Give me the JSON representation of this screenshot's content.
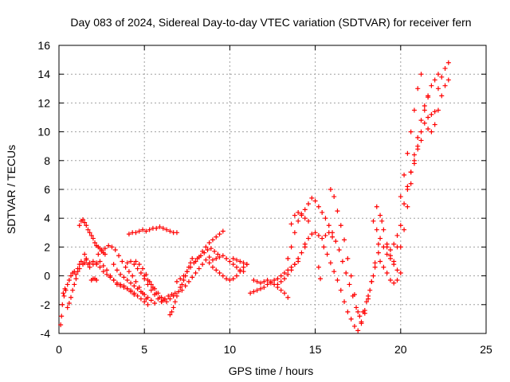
{
  "chart_data": {
    "type": "scatter",
    "title": "Day 083 of 2024, Sidereal Day-to-day VTEC variation (SDTVAR) for receiver fern",
    "xlabel": "GPS time / hours",
    "ylabel": "SDTVAR / TECUs",
    "xlim": [
      0,
      25
    ],
    "ylim": [
      -4,
      16
    ],
    "xticks": [
      0,
      5,
      10,
      15,
      20,
      25
    ],
    "yticks": [
      -4,
      -2,
      0,
      2,
      4,
      6,
      8,
      10,
      12,
      14,
      16
    ],
    "grid": true,
    "marker": "+",
    "color": "#ff0000",
    "series": [
      {
        "x": [
          0.1,
          0.15,
          0.2,
          0.25,
          0.3,
          0.35,
          0.4,
          0.5,
          0.6,
          0.7,
          0.8,
          0.9,
          1.0,
          1.1,
          1.2,
          1.3,
          1.4,
          1.5,
          1.6,
          1.7,
          1.8
        ],
        "y": [
          -3.4,
          -2.8,
          -2.0,
          -1.2,
          -1.4,
          -0.9,
          -1.0,
          -0.6,
          -0.3,
          0.0,
          0.2,
          0.3,
          0.1,
          0.5,
          0.8,
          1.0,
          0.8,
          0.9,
          1.1,
          0.8,
          0.6
        ]
      },
      {
        "x": [
          0.5,
          0.6,
          0.7,
          0.8,
          0.9,
          1.0,
          1.1,
          1.2
        ],
        "y": [
          -2.2,
          -1.9,
          -1.5,
          -1.0,
          -0.6,
          -0.2,
          0.3,
          0.5
        ]
      },
      {
        "x": [
          1.2,
          1.3,
          1.4,
          1.5,
          1.6,
          1.7,
          1.8,
          1.9,
          2.0,
          2.1,
          2.2,
          2.3,
          2.4,
          2.5,
          2.6,
          2.7
        ],
        "y": [
          3.5,
          3.8,
          3.9,
          3.7,
          3.5,
          3.2,
          3.0,
          2.8,
          2.6,
          2.3,
          2.1,
          2.0,
          1.9,
          1.8,
          1.6,
          1.5
        ]
      },
      {
        "x": [
          1.5,
          1.6,
          1.8,
          2.0,
          2.2,
          2.4,
          2.6,
          2.8,
          3.0,
          3.2,
          3.4,
          3.6,
          3.8,
          4.0,
          4.2,
          4.4,
          4.6,
          4.8,
          5.0,
          5.2
        ],
        "y": [
          1.5,
          1.2,
          0.9,
          0.8,
          0.9,
          1.0,
          0.7,
          0.4,
          0.0,
          -0.3,
          -0.6,
          -0.7,
          -0.8,
          -0.9,
          -1.0,
          -1.2,
          -1.4,
          -1.6,
          -1.8,
          -2.0
        ]
      },
      {
        "x": [
          2.0,
          2.2,
          2.4,
          2.6,
          2.8,
          3.0,
          3.2,
          3.4,
          3.6,
          3.8,
          4.0,
          4.2,
          4.4
        ],
        "y": [
          1.0,
          0.8,
          0.6,
          0.3,
          0.1,
          -0.1,
          -0.3,
          -0.5,
          -0.6,
          -0.7,
          -0.9,
          -1.1,
          -1.3
        ]
      },
      {
        "x": [
          1.9,
          2.0,
          2.1,
          2.2
        ],
        "y": [
          -0.3,
          -0.2,
          -0.2,
          -0.3
        ]
      },
      {
        "x": [
          2.3,
          2.5,
          2.7,
          2.9,
          3.1,
          3.3,
          3.5,
          3.7,
          3.9,
          4.1,
          4.3,
          4.5,
          4.7,
          4.9,
          5.1
        ],
        "y": [
          1.5,
          1.7,
          1.9,
          2.1,
          2.0,
          1.8,
          1.4,
          1.0,
          0.6,
          0.3,
          0.0,
          -0.4,
          -0.8,
          -1.2,
          -1.6
        ]
      },
      {
        "x": [
          3.2,
          3.4,
          3.6,
          3.8,
          4.0,
          4.2,
          4.4,
          4.6,
          4.8,
          5.0,
          5.2,
          5.4,
          5.6
        ],
        "y": [
          0.8,
          0.4,
          0.1,
          -0.1,
          -0.3,
          -0.5,
          -0.7,
          -0.9,
          -1.1,
          -1.3,
          -1.5,
          -1.7,
          -1.9
        ]
      },
      {
        "x": [
          4.0,
          4.2,
          4.4,
          4.6,
          4.8,
          5.0,
          5.2,
          5.4,
          5.6,
          5.8,
          6.0
        ],
        "y": [
          0.9,
          1.0,
          0.8,
          0.5,
          0.2,
          -0.2,
          -0.6,
          -1.0,
          -1.3,
          -1.6,
          -1.8
        ]
      },
      {
        "x": [
          4.5,
          4.7,
          4.9,
          5.1,
          5.3,
          5.5,
          5.7,
          5.9,
          6.1,
          6.3,
          6.5,
          6.7
        ],
        "y": [
          1.0,
          0.8,
          0.5,
          0.1,
          -0.4,
          -0.8,
          -1.2,
          -1.5,
          -1.7,
          -1.8,
          -1.6,
          -1.4
        ]
      },
      {
        "x": [
          5.0,
          5.2,
          5.4,
          5.6,
          5.8,
          6.0,
          6.2
        ],
        "y": [
          0.0,
          -0.3,
          -0.6,
          -0.9,
          -1.2,
          -1.5,
          -1.6
        ]
      },
      {
        "x": [
          6.0,
          6.2,
          6.4,
          6.6,
          6.8
        ],
        "y": [
          -1.8,
          -1.6,
          -1.4,
          -1.3,
          -1.2
        ]
      },
      {
        "x": [
          4.1,
          4.3,
          4.5,
          4.7,
          4.9,
          5.1,
          5.3,
          5.5,
          5.7,
          5.9,
          6.1,
          6.3,
          6.5,
          6.7,
          6.9
        ],
        "y": [
          2.9,
          3.0,
          3.0,
          3.1,
          3.2,
          3.1,
          3.2,
          3.3,
          3.3,
          3.4,
          3.3,
          3.2,
          3.1,
          3.0,
          3.0
        ]
      },
      {
        "x": [
          6.5,
          6.6,
          6.7,
          6.8,
          6.9,
          7.0,
          7.1,
          7.2,
          7.3,
          7.4,
          7.5,
          7.6,
          7.7,
          7.8
        ],
        "y": [
          -2.7,
          -2.5,
          -2.2,
          -1.8,
          -1.4,
          -1.1,
          -0.8,
          -0.6,
          -0.3,
          0.0,
          0.3,
          0.6,
          0.9,
          1.2
        ]
      },
      {
        "x": [
          6.9,
          7.1,
          7.3,
          7.5,
          7.7,
          7.9,
          8.1,
          8.3,
          8.5,
          8.7,
          8.9,
          9.1,
          9.3
        ],
        "y": [
          -0.4,
          -0.2,
          0.0,
          0.3,
          0.6,
          0.9,
          1.2,
          1.4,
          1.6,
          1.8,
          1.9,
          1.7,
          1.5
        ]
      },
      {
        "x": [
          7.2,
          7.4,
          7.6,
          7.8,
          8.0,
          8.2,
          8.4,
          8.6,
          8.8
        ],
        "y": [
          -1.0,
          -0.7,
          -0.4,
          -0.1,
          0.2,
          0.5,
          0.8,
          1.1,
          1.3
        ]
      },
      {
        "x": [
          8.0,
          8.2,
          8.4,
          8.6,
          8.8,
          9.0,
          9.2,
          9.4,
          9.6
        ],
        "y": [
          1.0,
          1.3,
          1.7,
          2.0,
          2.3,
          2.5,
          2.7,
          2.9,
          3.1
        ]
      },
      {
        "x": [
          8.8,
          9.0,
          9.2,
          9.4,
          9.6,
          9.8,
          10.0,
          10.2,
          10.4,
          10.6,
          10.8
        ],
        "y": [
          0.9,
          1.1,
          1.2,
          1.3,
          1.4,
          1.2,
          1.0,
          0.8,
          0.6,
          0.4,
          0.3
        ]
      },
      {
        "x": [
          9.0,
          9.2,
          9.4,
          9.6,
          9.8,
          10.0,
          10.2,
          10.4,
          10.6,
          10.8,
          11.0
        ],
        "y": [
          0.6,
          0.4,
          0.2,
          0.0,
          -0.2,
          -0.3,
          -0.2,
          0.0,
          0.3,
          0.6,
          0.8
        ]
      },
      {
        "x": [
          10.2,
          10.4,
          10.6,
          10.8,
          11.0
        ],
        "y": [
          1.2,
          1.1,
          1.0,
          0.9,
          0.8
        ]
      },
      {
        "x": [
          11.2,
          11.4,
          11.6,
          11.8,
          12.0,
          12.2,
          12.4,
          12.6,
          12.8,
          13.0,
          13.2,
          13.4,
          13.6,
          13.8,
          14.0
        ],
        "y": [
          -1.2,
          -1.1,
          -1.0,
          -0.9,
          -0.8,
          -0.6,
          -0.5,
          -0.3,
          -0.2,
          0.0,
          0.2,
          0.4,
          0.6,
          0.8,
          1.0
        ]
      },
      {
        "x": [
          11.4,
          11.6,
          11.8,
          12.0,
          12.2,
          12.4,
          12.6,
          12.8,
          13.0,
          13.2,
          13.4
        ],
        "y": [
          -0.3,
          -0.4,
          -0.5,
          -0.4,
          -0.3,
          -0.4,
          -0.6,
          -0.8,
          -1.0,
          -1.2,
          -1.5
        ]
      },
      {
        "x": [
          12.8,
          13.0,
          13.2,
          13.4,
          13.6,
          13.8,
          14.0,
          14.2,
          14.4
        ],
        "y": [
          -0.6,
          -0.4,
          -0.2,
          0.1,
          0.4,
          0.8,
          1.2,
          1.6,
          2.0
        ]
      },
      {
        "x": [
          13.4,
          13.6,
          13.8,
          14.0,
          14.2,
          14.4,
          14.6,
          14.8,
          15.0,
          15.2,
          15.4,
          15.6,
          15.8,
          16.0
        ],
        "y": [
          1.2,
          2.0,
          3.0,
          3.8,
          4.2,
          4.6,
          5.0,
          5.4,
          5.2,
          4.8,
          4.4,
          4.0,
          3.5,
          3.0
        ]
      },
      {
        "x": [
          13.6,
          13.8,
          14.0,
          14.2,
          14.4,
          14.6
        ],
        "y": [
          3.6,
          4.2,
          4.4,
          4.3,
          4.0,
          3.8
        ]
      },
      {
        "x": [
          14.4,
          14.6,
          14.8,
          15.0,
          15.2,
          15.4,
          15.6,
          15.8,
          16.0,
          16.2
        ],
        "y": [
          2.2,
          2.6,
          2.9,
          3.0,
          2.8,
          2.6,
          2.8,
          3.0,
          2.7,
          2.4
        ]
      },
      {
        "x": [
          15.2,
          15.3
        ],
        "y": [
          0.6,
          -0.2
        ]
      },
      {
        "x": [
          15.5,
          15.7,
          15.9,
          16.1,
          16.3,
          16.5,
          16.7,
          16.9,
          17.1,
          17.3,
          17.5,
          17.7,
          17.9,
          18.1,
          18.3,
          18.5,
          18.7
        ],
        "y": [
          2.0,
          1.5,
          0.9,
          0.3,
          -0.3,
          -1.0,
          -1.8,
          -2.5,
          -3.0,
          -3.5,
          -3.8,
          -3.2,
          -2.4,
          -1.4,
          -0.4,
          0.6,
          1.6
        ]
      },
      {
        "x": [
          15.9,
          16.1,
          16.3,
          16.5,
          16.7,
          16.9,
          17.1,
          17.3,
          17.5,
          17.7,
          17.9,
          18.1,
          18.3,
          18.5,
          18.7,
          18.9
        ],
        "y": [
          6.0,
          5.5,
          4.5,
          3.5,
          2.5,
          1.2,
          0.0,
          -1.3,
          -2.5,
          -3.3,
          -2.6,
          -1.6,
          -0.4,
          0.9,
          2.2,
          3.8
        ]
      },
      {
        "x": [
          16.4,
          16.6,
          16.8,
          17.0,
          17.2,
          17.4,
          17.6,
          17.8,
          18.0,
          18.2,
          18.4
        ],
        "y": [
          1.8,
          1.0,
          0.2,
          -0.6,
          -1.4,
          -2.2,
          -2.8,
          -2.5,
          -1.8,
          -1.0,
          0.0
        ]
      },
      {
        "x": [
          18.4,
          18.6,
          18.8,
          19.0,
          19.2,
          19.4
        ],
        "y": [
          3.8,
          3.2,
          2.6,
          2.0,
          1.5,
          1.2
        ]
      },
      {
        "x": [
          18.6,
          18.8,
          19.0,
          19.2,
          19.4,
          19.6,
          19.8
        ],
        "y": [
          4.8,
          4.2,
          3.2,
          2.2,
          1.4,
          0.8,
          0.4
        ]
      },
      {
        "x": [
          18.8,
          19.0,
          19.2,
          19.4,
          19.6,
          19.8,
          20.0
        ],
        "y": [
          1.0,
          0.6,
          0.2,
          -0.3,
          -0.5,
          -0.3,
          0.2
        ]
      },
      {
        "x": [
          19.2,
          19.4,
          19.6,
          19.8
        ],
        "y": [
          2.0,
          1.8,
          2.2,
          2.8
        ]
      },
      {
        "x": [
          19.6,
          19.8,
          20.0,
          20.2,
          20.4,
          20.6,
          20.8,
          21.0,
          21.2
        ],
        "y": [
          1.0,
          2.0,
          3.5,
          5.0,
          6.2,
          7.2,
          8.0,
          8.8,
          9.4
        ]
      },
      {
        "x": [
          20.0,
          20.2,
          20.4,
          20.6,
          20.8,
          21.0,
          21.2,
          21.4,
          21.6,
          21.8,
          22.0
        ],
        "y": [
          2.0,
          3.2,
          4.8,
          6.4,
          7.8,
          9.0,
          10.0,
          10.6,
          11.0,
          11.2,
          11.4
        ]
      },
      {
        "x": [
          20.0,
          20.2,
          20.4,
          20.6,
          20.8,
          21.0,
          21.2
        ],
        "y": [
          5.5,
          7.0,
          8.5,
          10.0,
          11.5,
          13.0,
          14.0
        ]
      },
      {
        "x": [
          20.4,
          20.6,
          20.8,
          21.0,
          21.2,
          21.4,
          21.6
        ],
        "y": [
          6.0,
          7.2,
          8.4,
          9.6,
          10.8,
          11.8,
          12.4
        ]
      },
      {
        "x": [
          21.4,
          21.6,
          21.8,
          22.0,
          22.2
        ],
        "y": [
          11.5,
          12.5,
          13.2,
          13.6,
          14.0
        ]
      },
      {
        "x": [
          21.6,
          21.8,
          22.0,
          22.2,
          22.4,
          22.6,
          22.8
        ],
        "y": [
          10.2,
          10.0,
          10.5,
          11.5,
          12.5,
          13.2,
          13.6
        ]
      },
      {
        "x": [
          22.2,
          22.4,
          22.6,
          22.8
        ],
        "y": [
          13.0,
          13.8,
          14.4,
          14.8
        ]
      }
    ]
  }
}
